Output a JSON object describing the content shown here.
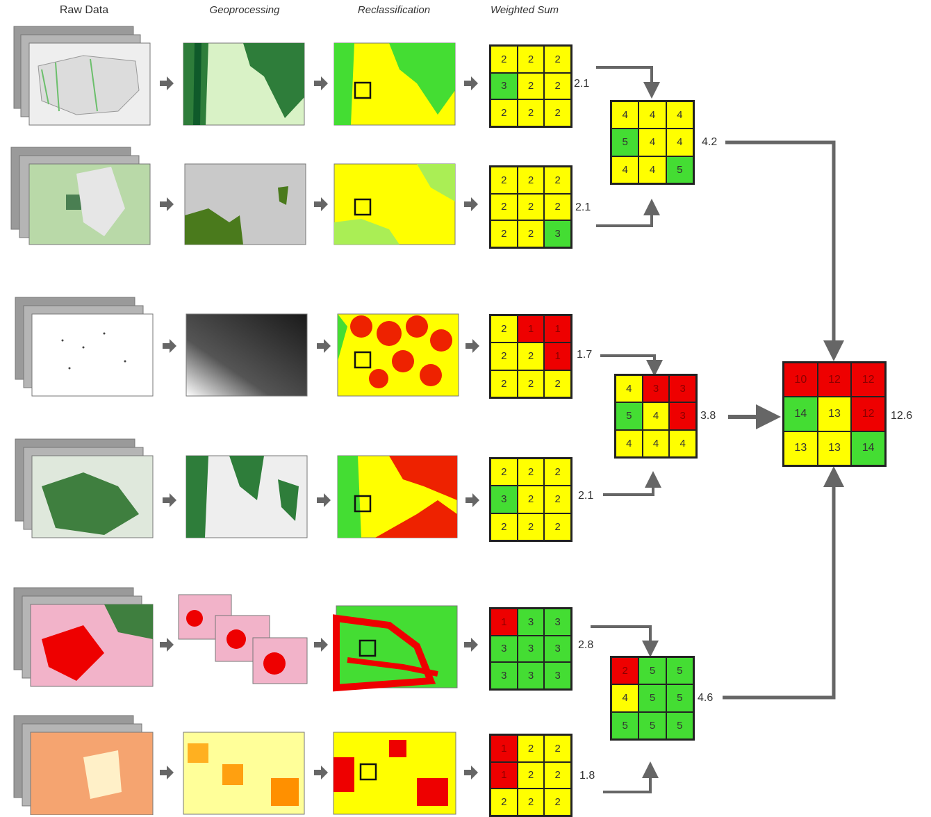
{
  "headers": [
    "Raw Data",
    "Geoprocessing",
    "Reclassification",
    "Weighted Sum"
  ],
  "colors": {
    "yellow": "#ffff00",
    "green": "#44dd33",
    "red": "#ee0000",
    "arrow": "#666666"
  },
  "rows": [
    {
      "grid": [
        [
          2,
          2,
          2
        ],
        [
          3,
          2,
          2
        ],
        [
          2,
          2,
          2
        ]
      ],
      "colors": [
        [
          "y",
          "y",
          "y"
        ],
        [
          "g",
          "y",
          "y"
        ],
        [
          "y",
          "y",
          "y"
        ]
      ],
      "score": "2.1"
    },
    {
      "grid": [
        [
          2,
          2,
          2
        ],
        [
          2,
          2,
          2
        ],
        [
          2,
          2,
          3
        ]
      ],
      "colors": [
        [
          "y",
          "y",
          "y"
        ],
        [
          "y",
          "y",
          "y"
        ],
        [
          "y",
          "y",
          "g"
        ]
      ],
      "score": "2.1"
    },
    {
      "grid": [
        [
          2,
          1,
          1
        ],
        [
          2,
          2,
          1
        ],
        [
          2,
          2,
          2
        ]
      ],
      "colors": [
        [
          "y",
          "r",
          "r"
        ],
        [
          "y",
          "y",
          "r"
        ],
        [
          "y",
          "y",
          "y"
        ]
      ],
      "score": "1.7"
    },
    {
      "grid": [
        [
          2,
          2,
          2
        ],
        [
          3,
          2,
          2
        ],
        [
          2,
          2,
          2
        ]
      ],
      "colors": [
        [
          "y",
          "y",
          "y"
        ],
        [
          "g",
          "y",
          "y"
        ],
        [
          "y",
          "y",
          "y"
        ]
      ],
      "score": "2.1"
    },
    {
      "grid": [
        [
          1,
          3,
          3
        ],
        [
          3,
          3,
          3
        ],
        [
          3,
          3,
          3
        ]
      ],
      "colors": [
        [
          "r",
          "g",
          "g"
        ],
        [
          "g",
          "g",
          "g"
        ],
        [
          "g",
          "g",
          "g"
        ]
      ],
      "score": "2.8"
    },
    {
      "grid": [
        [
          1,
          2,
          2
        ],
        [
          1,
          2,
          2
        ],
        [
          2,
          2,
          2
        ]
      ],
      "colors": [
        [
          "r",
          "y",
          "y"
        ],
        [
          "r",
          "y",
          "y"
        ],
        [
          "y",
          "y",
          "y"
        ]
      ],
      "score": "1.8"
    }
  ],
  "merges": [
    {
      "grid": [
        [
          4,
          4,
          4
        ],
        [
          5,
          4,
          4
        ],
        [
          4,
          4,
          5
        ]
      ],
      "colors": [
        [
          "y",
          "y",
          "y"
        ],
        [
          "g",
          "y",
          "y"
        ],
        [
          "y",
          "y",
          "g"
        ]
      ],
      "score": "4.2"
    },
    {
      "grid": [
        [
          4,
          3,
          3
        ],
        [
          5,
          4,
          3
        ],
        [
          4,
          4,
          4
        ]
      ],
      "colors": [
        [
          "y",
          "r",
          "r"
        ],
        [
          "g",
          "y",
          "r"
        ],
        [
          "y",
          "y",
          "y"
        ]
      ],
      "score": "3.8"
    },
    {
      "grid": [
        [
          2,
          5,
          5
        ],
        [
          4,
          5,
          5
        ],
        [
          5,
          5,
          5
        ]
      ],
      "colors": [
        [
          "r",
          "g",
          "g"
        ],
        [
          "y",
          "g",
          "g"
        ],
        [
          "g",
          "g",
          "g"
        ]
      ],
      "score": "4.6"
    }
  ],
  "final": {
    "grid": [
      [
        10,
        12,
        12
      ],
      [
        14,
        13,
        12
      ],
      [
        13,
        13,
        14
      ]
    ],
    "colors": [
      [
        "r",
        "r",
        "r"
      ],
      [
        "g",
        "y",
        "r"
      ],
      [
        "y",
        "y",
        "g"
      ]
    ],
    "score": "12.6"
  }
}
